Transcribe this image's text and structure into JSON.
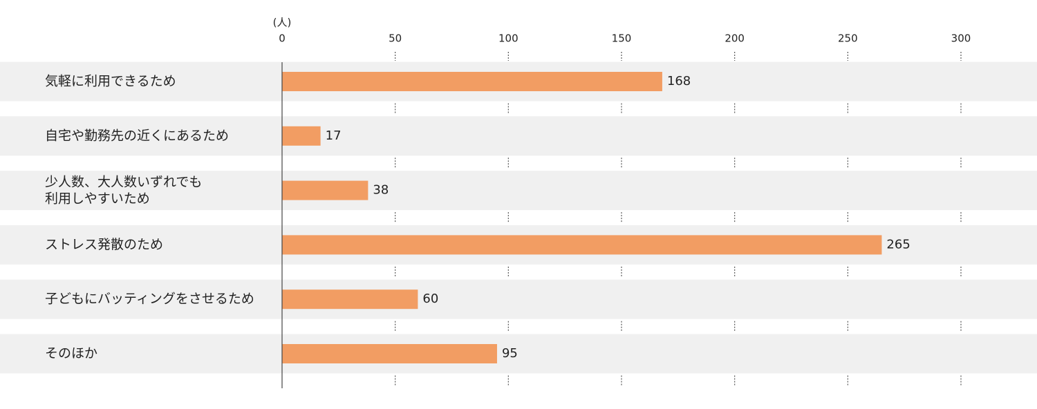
{
  "chart_data": {
    "type": "bar",
    "orientation": "horizontal",
    "unit_label": "(人)",
    "categories": [
      "気軽に利用できるため",
      "自宅や勤務先の近くにあるため",
      [
        "少人数、大人数いずれでも",
        "利用しやすいため"
      ],
      "ストレス発散のため",
      "子どもにバッティングをさせるため",
      "そのほか"
    ],
    "values": [
      168,
      17,
      38,
      265,
      60,
      95
    ],
    "color": "#f29d63",
    "xlim": [
      0,
      300
    ],
    "xticks": [
      0,
      50,
      100,
      150,
      200,
      250,
      300
    ]
  }
}
